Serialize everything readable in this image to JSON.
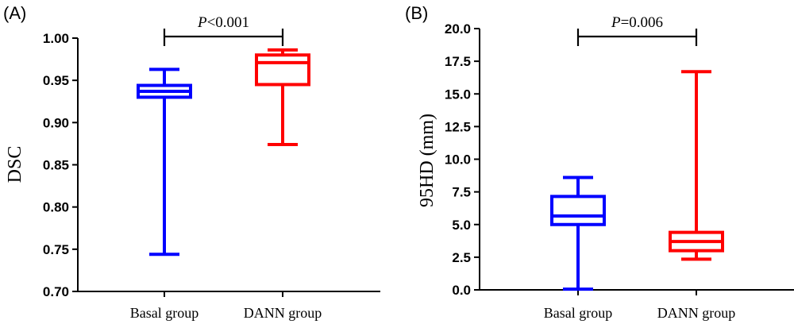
{
  "chart_data": [
    {
      "type": "box",
      "panel_label": "(A)",
      "ylabel": "DSC",
      "ylim": [
        0.7,
        1.0
      ],
      "yticks": [
        "0.70",
        "0.75",
        "0.80",
        "0.85",
        "0.90",
        "0.95",
        "1.00"
      ],
      "ytick_values": [
        0.7,
        0.75,
        0.8,
        0.85,
        0.9,
        0.95,
        1.0
      ],
      "categories": [
        "Basal group",
        "DANN group"
      ],
      "boxes": [
        {
          "category": "Basal group",
          "color": "#0000ff",
          "min": 0.744,
          "q1": 0.93,
          "median": 0.937,
          "q3": 0.944,
          "max": 0.963
        },
        {
          "category": "DANN group",
          "color": "#ff0000",
          "min": 0.874,
          "q1": 0.945,
          "median": 0.971,
          "q3": 0.98,
          "max": 0.986
        }
      ],
      "significance": {
        "prefix": "P",
        "text": "<0.001"
      }
    },
    {
      "type": "box",
      "panel_label": "(B)",
      "ylabel": "95HD (mm)",
      "ylim": [
        0.0,
        20.0
      ],
      "yticks": [
        "0.0",
        "2.5",
        "5.0",
        "7.5",
        "10.0",
        "12.5",
        "15.0",
        "17.5",
        "20.0"
      ],
      "ytick_values": [
        0.0,
        2.5,
        5.0,
        7.5,
        10.0,
        12.5,
        15.0,
        17.5,
        20.0
      ],
      "categories": [
        "Basal group",
        "DANN group"
      ],
      "boxes": [
        {
          "category": "Basal group",
          "color": "#0000ff",
          "min": 0.05,
          "q1": 5.0,
          "median": 5.65,
          "q3": 7.15,
          "max": 8.6
        },
        {
          "category": "DANN group",
          "color": "#ff0000",
          "min": 2.35,
          "q1": 3.0,
          "median": 3.7,
          "q3": 4.4,
          "max": 16.7
        }
      ],
      "significance": {
        "prefix": "P",
        "text": "=0.006"
      }
    }
  ]
}
